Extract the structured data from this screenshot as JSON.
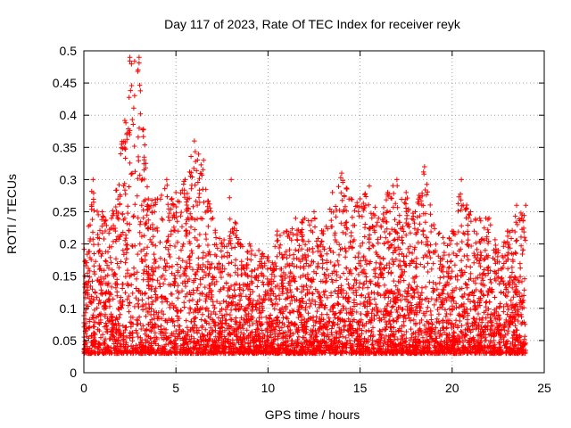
{
  "chart_data": {
    "type": "scatter",
    "title": "Day 117 of 2023, Rate Of TEC Index for receiver reyk",
    "xlabel": "GPS time / hours",
    "ylabel": "ROTI / TECUs",
    "xlim": [
      0,
      25
    ],
    "ylim": [
      0,
      0.5
    ],
    "xticks": [
      "0",
      "5",
      "10",
      "15",
      "20",
      "25"
    ],
    "yticks": [
      "0",
      "0.05",
      "0.1",
      "0.15",
      "0.2",
      "0.25",
      "0.3",
      "0.35",
      "0.4",
      "0.45",
      "0.5"
    ],
    "grid": true,
    "marker": "plus",
    "colors": {
      "points": "#ff0000",
      "grid": "#a0a0a0",
      "axes": "#000000"
    },
    "envelope": [
      {
        "x": 0.0,
        "y_max": 0.2
      },
      {
        "x": 0.5,
        "y_max": 0.3
      },
      {
        "x": 1.0,
        "y_max": 0.25
      },
      {
        "x": 1.5,
        "y_max": 0.24
      },
      {
        "x": 2.0,
        "y_max": 0.34
      },
      {
        "x": 2.5,
        "y_max": 0.49
      },
      {
        "x": 3.0,
        "y_max": 0.49
      },
      {
        "x": 3.5,
        "y_max": 0.27
      },
      {
        "x": 4.0,
        "y_max": 0.27
      },
      {
        "x": 4.5,
        "y_max": 0.3
      },
      {
        "x": 5.0,
        "y_max": 0.28
      },
      {
        "x": 5.5,
        "y_max": 0.3
      },
      {
        "x": 6.0,
        "y_max": 0.36
      },
      {
        "x": 6.5,
        "y_max": 0.33
      },
      {
        "x": 7.0,
        "y_max": 0.24
      },
      {
        "x": 7.5,
        "y_max": 0.2
      },
      {
        "x": 8.0,
        "y_max": 0.3
      },
      {
        "x": 8.5,
        "y_max": 0.2
      },
      {
        "x": 9.0,
        "y_max": 0.2
      },
      {
        "x": 9.5,
        "y_max": 0.19
      },
      {
        "x": 10.0,
        "y_max": 0.18
      },
      {
        "x": 10.5,
        "y_max": 0.22
      },
      {
        "x": 11.0,
        "y_max": 0.22
      },
      {
        "x": 11.5,
        "y_max": 0.24
      },
      {
        "x": 12.0,
        "y_max": 0.24
      },
      {
        "x": 12.5,
        "y_max": 0.25
      },
      {
        "x": 13.0,
        "y_max": 0.22
      },
      {
        "x": 13.5,
        "y_max": 0.28
      },
      {
        "x": 14.0,
        "y_max": 0.31
      },
      {
        "x": 14.5,
        "y_max": 0.27
      },
      {
        "x": 15.0,
        "y_max": 0.27
      },
      {
        "x": 15.5,
        "y_max": 0.29
      },
      {
        "x": 16.0,
        "y_max": 0.24
      },
      {
        "x": 16.5,
        "y_max": 0.28
      },
      {
        "x": 17.0,
        "y_max": 0.3
      },
      {
        "x": 17.5,
        "y_max": 0.28
      },
      {
        "x": 18.0,
        "y_max": 0.25
      },
      {
        "x": 18.5,
        "y_max": 0.32
      },
      {
        "x": 19.0,
        "y_max": 0.23
      },
      {
        "x": 19.5,
        "y_max": 0.21
      },
      {
        "x": 20.0,
        "y_max": 0.22
      },
      {
        "x": 20.5,
        "y_max": 0.3
      },
      {
        "x": 21.0,
        "y_max": 0.25
      },
      {
        "x": 21.5,
        "y_max": 0.24
      },
      {
        "x": 22.0,
        "y_max": 0.24
      },
      {
        "x": 22.5,
        "y_max": 0.19
      },
      {
        "x": 23.0,
        "y_max": 0.22
      },
      {
        "x": 23.5,
        "y_max": 0.26
      },
      {
        "x": 24.0,
        "y_max": 0.26
      }
    ],
    "y_min_floor": 0.01,
    "x_extent": [
      0,
      24
    ]
  }
}
